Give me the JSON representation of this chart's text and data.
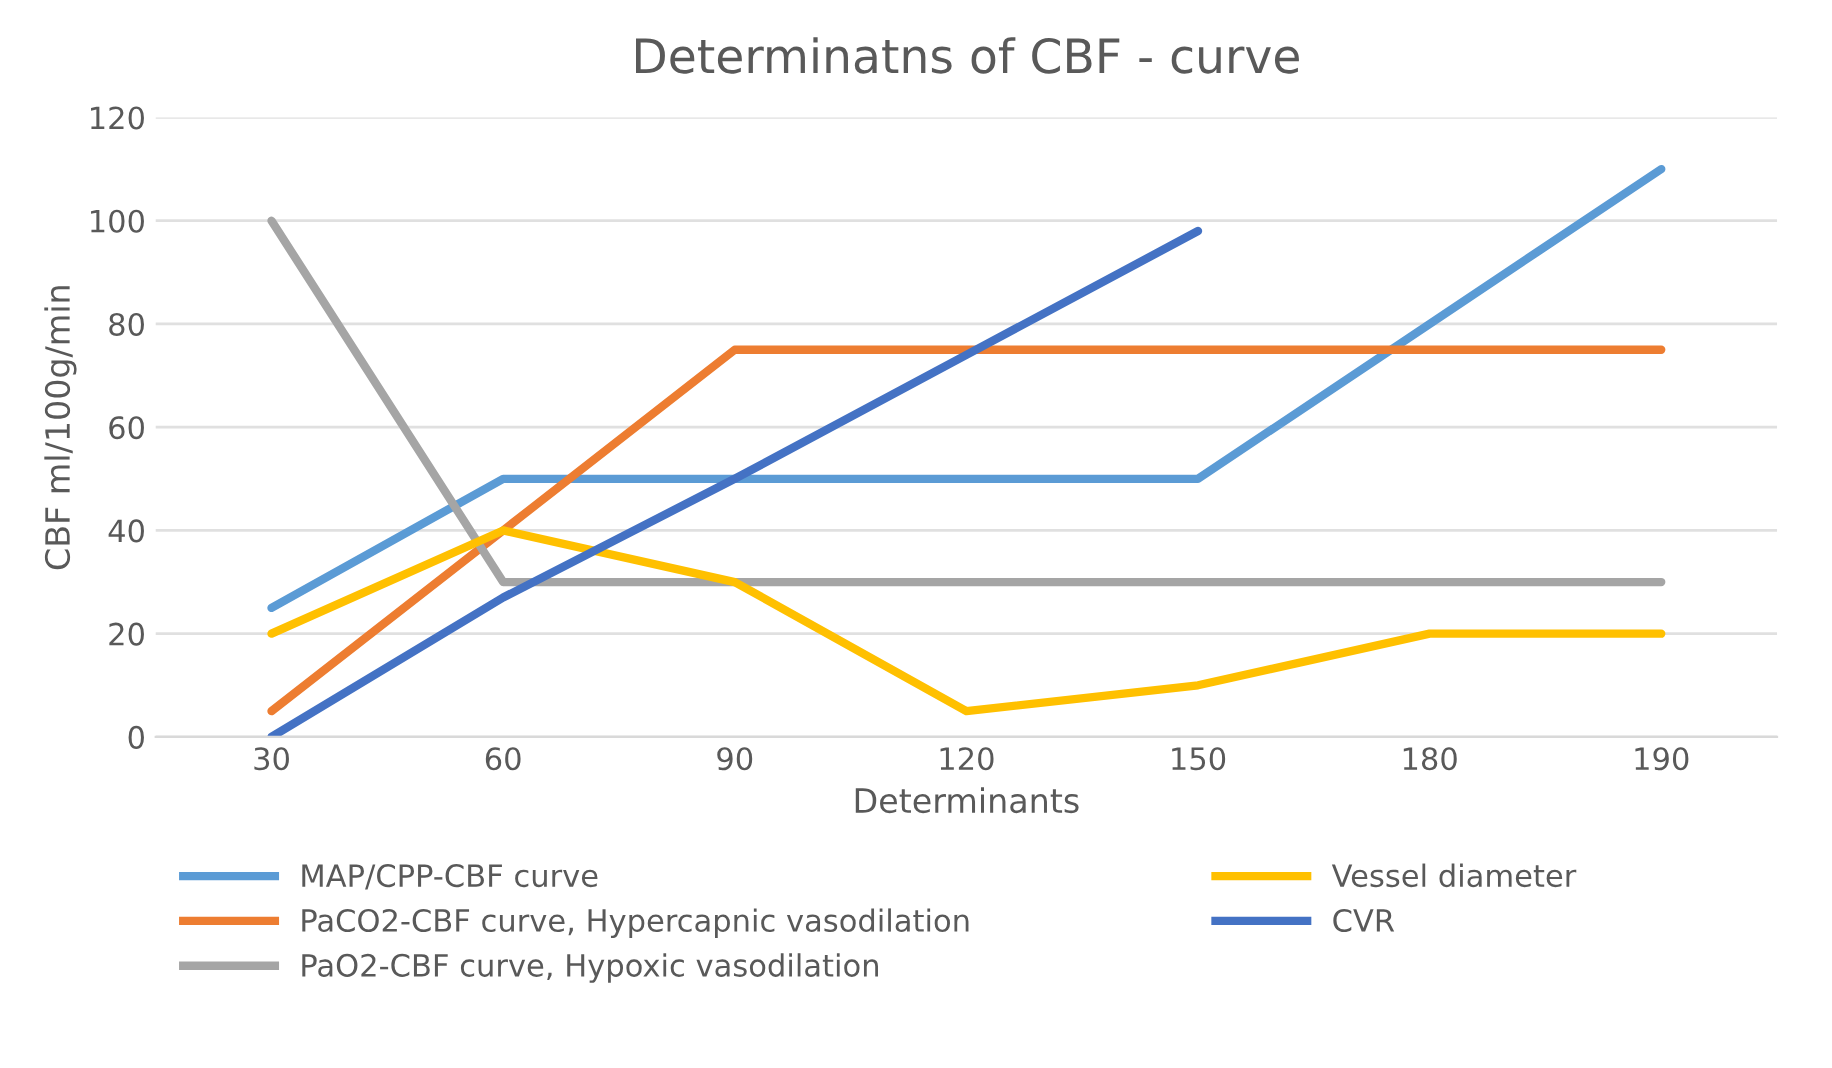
{
  "chart_data": {
    "type": "line",
    "title": "Determinatns of CBF - curve",
    "xlabel": "Determinants",
    "ylabel": "CBF ml/100g/min",
    "categories": [
      "30",
      "60",
      "90",
      "120",
      "150",
      "180",
      "190"
    ],
    "series": [
      {
        "name": "MAP/CPP-CBF curve",
        "color": "#5b9bd5",
        "values": [
          25,
          50,
          50,
          50,
          50,
          80,
          110
        ]
      },
      {
        "name": "PaCO2-CBF curve, Hypercapnic vasodilation",
        "color": "#ed7d31",
        "values": [
          5,
          40,
          75,
          75,
          75,
          75,
          75
        ]
      },
      {
        "name": "PaO2-CBF curve, Hypoxic vasodilation",
        "color": "#a5a5a5",
        "values": [
          100,
          30,
          30,
          30,
          30,
          30,
          30
        ]
      },
      {
        "name": "Vessel diameter",
        "color": "#ffc000",
        "values": [
          20,
          40,
          30,
          5,
          10,
          20,
          20
        ]
      },
      {
        "name": "CVR",
        "color": "#4472c4",
        "values": [
          0,
          27,
          50,
          74,
          98,
          null,
          null
        ]
      }
    ],
    "ylim": [
      0,
      120
    ],
    "yticks": [
      0,
      20,
      40,
      60,
      80,
      100,
      120
    ],
    "grid": "y",
    "legend": "bottom",
    "marker": "none",
    "line_style": "solid"
  }
}
